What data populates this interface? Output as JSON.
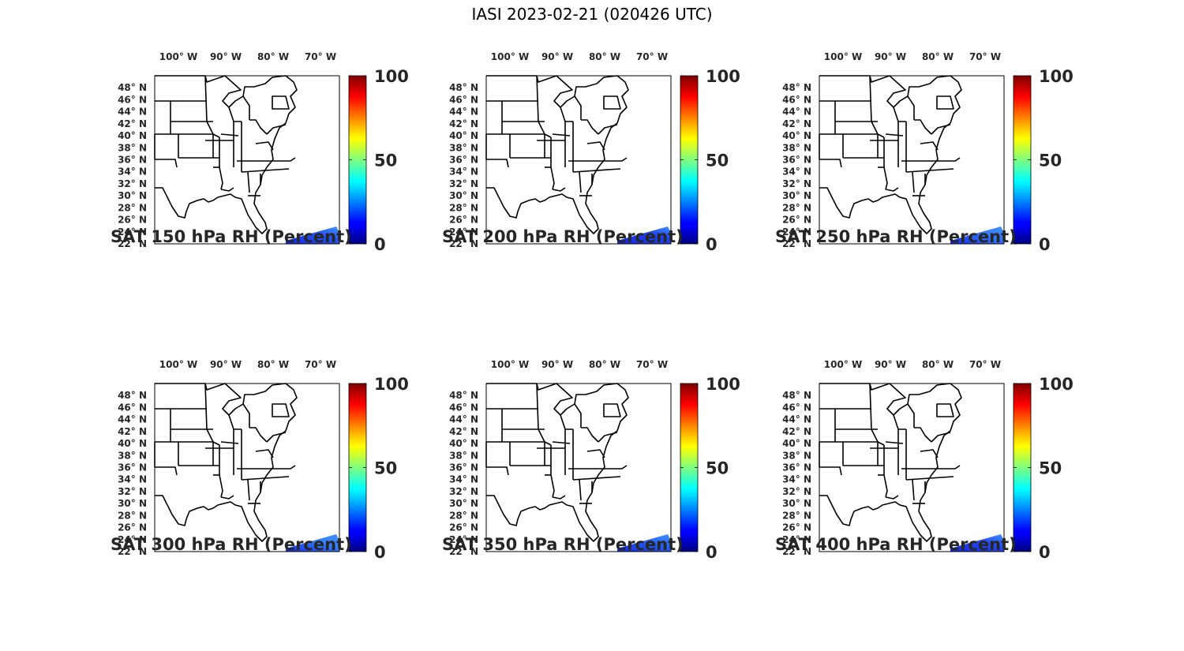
{
  "figure": {
    "title": "IASI 2023-02-21 (020426 UTC)"
  },
  "map": {
    "lon_ticks": [
      {
        "deg": "100",
        "hemi": "W"
      },
      {
        "deg": "90",
        "hemi": "W"
      },
      {
        "deg": "80",
        "hemi": "W"
      },
      {
        "deg": "70",
        "hemi": "W"
      }
    ],
    "lat_ticks": [
      {
        "deg": "48",
        "hemi": "N"
      },
      {
        "deg": "46",
        "hemi": "N"
      },
      {
        "deg": "44",
        "hemi": "N"
      },
      {
        "deg": "42",
        "hemi": "N"
      },
      {
        "deg": "40",
        "hemi": "N"
      },
      {
        "deg": "38",
        "hemi": "N"
      },
      {
        "deg": "36",
        "hemi": "N"
      },
      {
        "deg": "34",
        "hemi": "N"
      },
      {
        "deg": "32",
        "hemi": "N"
      },
      {
        "deg": "30",
        "hemi": "N"
      },
      {
        "deg": "28",
        "hemi": "N"
      },
      {
        "deg": "26",
        "hemi": "N"
      },
      {
        "deg": "24",
        "hemi": "N"
      },
      {
        "deg": "22",
        "hemi": "N"
      }
    ],
    "degree_symbol": "°"
  },
  "colorbar": {
    "colormap": "jet",
    "ticks": [
      "100",
      "50",
      "0"
    ],
    "range": [
      0,
      100
    ]
  },
  "panels": [
    {
      "title": "SAT 150 hPa RH (Percent)",
      "swath_tone": "#1a4cf0"
    },
    {
      "title": "SAT 200 hPa RH (Percent)",
      "swath_tone": "#1438ec"
    },
    {
      "title": "SAT 250 hPa RH (Percent)",
      "swath_tone": "#2a70f8"
    },
    {
      "title": "SAT 300 hPa RH (Percent)",
      "swath_tone": "#2a78fa"
    },
    {
      "title": "SAT 350 hPa RH (Percent)",
      "swath_tone": "#1c58f2"
    },
    {
      "title": "SAT 400 hPa RH (Percent)",
      "swath_tone": "#1a40ee"
    }
  ]
}
